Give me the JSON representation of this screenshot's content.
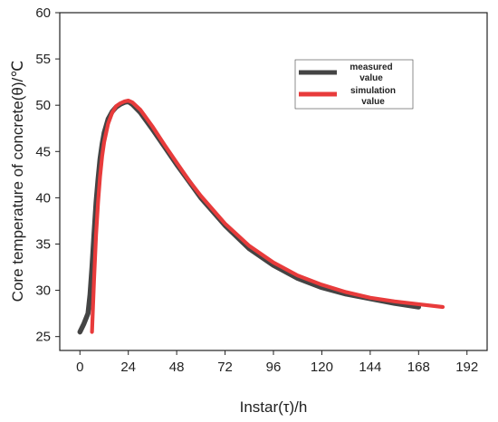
{
  "chart_data": {
    "type": "line",
    "xlabel": "Instar(τ)/h",
    "ylabel": "Core temperature of concrete(θ)/℃",
    "xlim": [
      -10,
      202
    ],
    "ylim": [
      23.5,
      60
    ],
    "xticks": [
      0,
      24,
      48,
      72,
      96,
      120,
      144,
      168,
      192
    ],
    "yticks": [
      25,
      30,
      35,
      40,
      45,
      50,
      55,
      60
    ],
    "grid": false,
    "legend_position": "top-right",
    "series": [
      {
        "name": "measured value",
        "legend_lines": [
          "measured",
          "value"
        ],
        "color": "#444444",
        "x": [
          0,
          2,
          4,
          5,
          6,
          7,
          8,
          9,
          10,
          11,
          12,
          14,
          16,
          18,
          20,
          22,
          24,
          26,
          30,
          36,
          42,
          48,
          54,
          60,
          72,
          84,
          96,
          108,
          120,
          132,
          144,
          156,
          168
        ],
        "y": [
          25.5,
          26.4,
          27.5,
          29.5,
          32.5,
          36.0,
          39.5,
          42.0,
          44.2,
          45.8,
          47.0,
          48.5,
          49.3,
          49.8,
          50.1,
          50.3,
          50.4,
          50.1,
          49.2,
          47.4,
          45.5,
          43.6,
          41.8,
          40.0,
          37.0,
          34.5,
          32.7,
          31.3,
          30.3,
          29.6,
          29.1,
          28.6,
          28.2
        ]
      },
      {
        "name": "simulation value",
        "legend_lines": [
          "simulation",
          "value"
        ],
        "color": "#e83b3b",
        "x": [
          6,
          7,
          8,
          9,
          10,
          11,
          12,
          14,
          16,
          18,
          20,
          22,
          24,
          26,
          30,
          36,
          42,
          48,
          54,
          60,
          72,
          84,
          96,
          108,
          120,
          132,
          144,
          156,
          168,
          180
        ],
        "y": [
          25.5,
          31.0,
          36.0,
          39.5,
          42.3,
          44.5,
          46.0,
          48.0,
          49.2,
          49.9,
          50.2,
          50.4,
          50.5,
          50.3,
          49.5,
          47.7,
          45.7,
          43.8,
          41.9,
          40.2,
          37.2,
          34.8,
          33.0,
          31.6,
          30.6,
          29.8,
          29.2,
          28.8,
          28.5,
          28.2
        ]
      }
    ]
  }
}
